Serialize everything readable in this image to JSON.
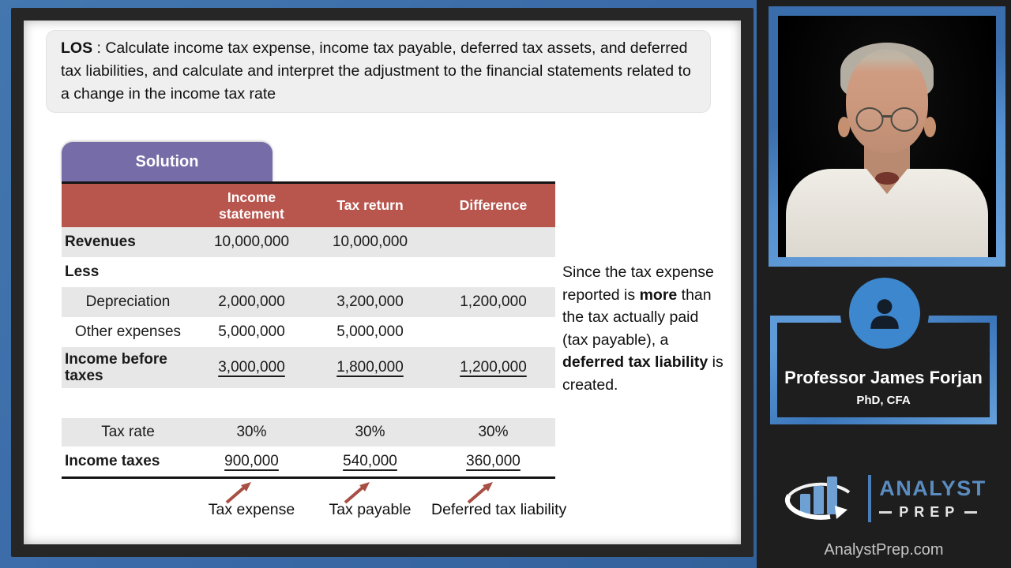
{
  "colors": {
    "background_blue": "#3A6AA8",
    "frame_dark": "#262626",
    "panel_dark": "#1E1E1E",
    "accent_blue": "#4389D2",
    "table_header_red": "#B8554D",
    "solution_purple": "#766CA8",
    "row_stripe_gray": "#E8E7E7",
    "arrow_brown_red": "#A84F45",
    "logo_bar_blue": "#6FA0D4",
    "logo_text_blue": "#5A8CC0"
  },
  "los": {
    "label": "LOS",
    "text": " : Calculate income tax expense, income tax payable, deferred tax assets, and deferred tax liabilities, and calculate and interpret the adjustment to the financial statements related to a change in the income tax rate"
  },
  "solution": {
    "label": "Solution"
  },
  "table": {
    "headers": [
      "",
      "Income statement",
      "Tax return",
      "Difference"
    ],
    "rows": [
      {
        "label": "Revenues",
        "bold": true,
        "indent": false,
        "shaded": true,
        "underline": false,
        "spacer": false,
        "tall": false,
        "slim": false,
        "values": [
          "10,000,000",
          "10,000,000",
          ""
        ]
      },
      {
        "label": "Less",
        "bold": true,
        "indent": false,
        "shaded": false,
        "underline": false,
        "spacer": false,
        "tall": false,
        "slim": false,
        "values": [
          "",
          "",
          ""
        ]
      },
      {
        "label": "Depreciation",
        "bold": false,
        "indent": true,
        "shaded": true,
        "underline": false,
        "spacer": false,
        "tall": false,
        "slim": false,
        "values": [
          "2,000,000",
          "3,200,000",
          "1,200,000"
        ]
      },
      {
        "label": "Other expenses",
        "bold": false,
        "indent": true,
        "shaded": false,
        "underline": false,
        "spacer": false,
        "tall": false,
        "slim": false,
        "values": [
          "5,000,000",
          "5,000,000",
          ""
        ]
      },
      {
        "label": "Income before taxes",
        "bold": true,
        "indent": false,
        "shaded": true,
        "underline": true,
        "spacer": false,
        "tall": true,
        "slim": false,
        "values": [
          "3,000,000",
          "1,800,000",
          "1,200,000"
        ]
      },
      {
        "label": "",
        "bold": false,
        "indent": false,
        "shaded": false,
        "underline": false,
        "spacer": true,
        "tall": false,
        "slim": false,
        "values": [
          "",
          "",
          ""
        ]
      },
      {
        "label": "Tax rate",
        "bold": false,
        "indent": false,
        "shaded": true,
        "underline": false,
        "spacer": false,
        "tall": false,
        "slim": true,
        "values": [
          "30%",
          "30%",
          "30%"
        ]
      },
      {
        "label": "Income taxes",
        "bold": true,
        "indent": false,
        "shaded": false,
        "underline": true,
        "spacer": false,
        "tall": false,
        "slim": false,
        "values": [
          "900,000",
          "540,000",
          "360,000"
        ]
      }
    ],
    "annotations": [
      "Tax expense",
      "Tax payable",
      "Deferred tax liability"
    ]
  },
  "note": {
    "parts": [
      {
        "text": "Since the tax expense reported is ",
        "bold": false
      },
      {
        "text": "more",
        "bold": true
      },
      {
        "text": " than the tax actually paid (tax payable), a ",
        "bold": false
      },
      {
        "text": "deferred tax liability",
        "bold": true
      },
      {
        "text": " is created.",
        "bold": false
      }
    ]
  },
  "presenter": {
    "name": "Professor James Forjan",
    "credentials": "PhD, CFA"
  },
  "brand": {
    "name_top": "ANALYST",
    "name_bottom": "PREP",
    "website": "AnalystPrep.com"
  }
}
